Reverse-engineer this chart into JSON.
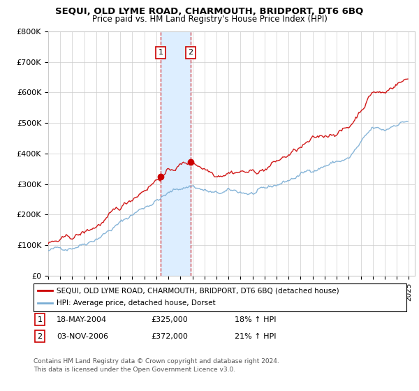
{
  "title": "SEQUI, OLD LYME ROAD, CHARMOUTH, BRIDPORT, DT6 6BQ",
  "subtitle": "Price paid vs. HM Land Registry's House Price Index (HPI)",
  "ylabel_ticks": [
    "£0",
    "£100K",
    "£200K",
    "£300K",
    "£400K",
    "£500K",
    "£600K",
    "£700K",
    "£800K"
  ],
  "ytick_values": [
    0,
    100000,
    200000,
    300000,
    400000,
    500000,
    600000,
    700000,
    800000
  ],
  "ylim": [
    0,
    800000
  ],
  "xlim_start": 1995.0,
  "xlim_end": 2025.5,
  "sale1_date": 2004.37,
  "sale1_price": 325000,
  "sale2_date": 2006.84,
  "sale2_price": 372000,
  "legend_line1": "SEQUI, OLD LYME ROAD, CHARMOUTH, BRIDPORT, DT6 6BQ (detached house)",
  "legend_line2": "HPI: Average price, detached house, Dorset",
  "footer1": "Contains HM Land Registry data © Crown copyright and database right 2024.",
  "footer2": "This data is licensed under the Open Government Licence v3.0.",
  "red_color": "#cc0000",
  "blue_color": "#7aadd4",
  "shade_color": "#ddeeff",
  "grid_color": "#cccccc",
  "background_color": "#ffffff"
}
